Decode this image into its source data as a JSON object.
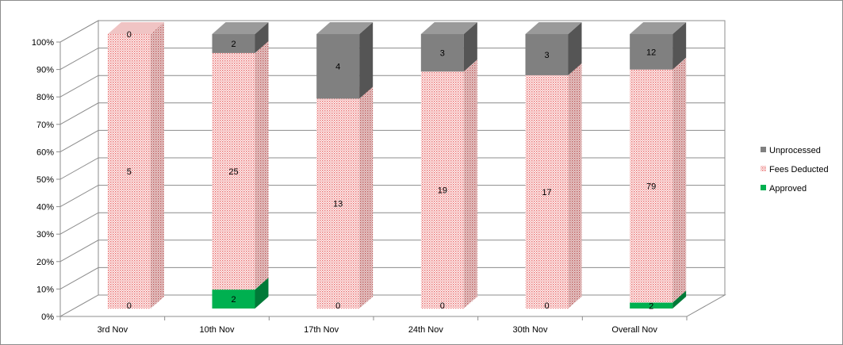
{
  "chart_data": {
    "type": "bar",
    "stacked": "percent",
    "three_d": true,
    "categories": [
      "3rd Nov",
      "10th Nov",
      "17th Nov",
      "24th Nov",
      "30th Nov",
      "Overall Nov"
    ],
    "series": [
      {
        "name": "Approved",
        "values": [
          0,
          2,
          0,
          0,
          0,
          2
        ],
        "color": "#00b050"
      },
      {
        "name": "Fees Deducted",
        "values": [
          5,
          25,
          13,
          19,
          17,
          79
        ],
        "color": "#f4a7a7",
        "pattern": "dotted-red"
      },
      {
        "name": "Unprocessed",
        "values": [
          0,
          2,
          4,
          3,
          3,
          12
        ],
        "color": "#7f7f7f"
      }
    ],
    "y_ticks": [
      "0%",
      "10%",
      "20%",
      "30%",
      "40%",
      "50%",
      "60%",
      "70%",
      "80%",
      "90%",
      "100%"
    ],
    "ylim": [
      0,
      100
    ],
    "grid": true,
    "legend_position": "right"
  }
}
